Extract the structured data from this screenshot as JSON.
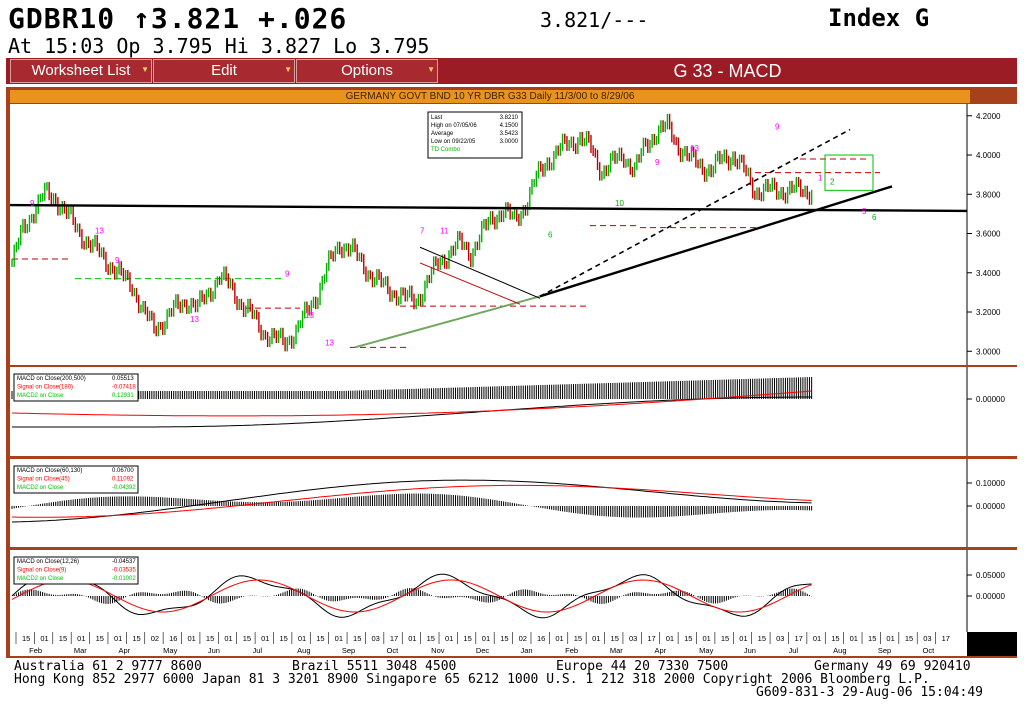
{
  "header": {
    "ticker": "GDBR10 ↑3.821 +.026",
    "quote": "3.821/---",
    "index": "Index  G",
    "line2": "At 15:03  Op 3.795 Hi 3.827 Lo 3.795"
  },
  "menu": {
    "worksheet": "Worksheet List",
    "edit": "Edit",
    "options": "Options",
    "title": "G 33 - MACD"
  },
  "chart_title": "GERMANY GOVT BND 10 YR DBR G33 Daily 11/3/00 to 8/29/06",
  "colors": {
    "frame": "#a8401c",
    "menu": "#9b1c24",
    "price_up": "#00c000",
    "price_down": "#c00000",
    "signal": "#ff0000",
    "macd_line": "#000000",
    "td_label": "#ff00ff"
  },
  "chart_data": [
    {
      "type": "line",
      "panel": "price",
      "y_ticks": [
        "4.2000",
        "4.0000",
        "3.8000",
        "3.6000",
        "3.4000",
        "3.2000",
        "3.0000"
      ],
      "ylim": [
        2.93,
        4.26
      ],
      "legend": [
        {
          "label": "Last",
          "value": "3.8210"
        },
        {
          "label": "High on  07/05/06",
          "value": "4.1500"
        },
        {
          "label": "Average",
          "value": "3.5423"
        },
        {
          "label": "Low on  09/22/05",
          "value": "3.0000"
        },
        {
          "label": "TD Combo",
          "value": ""
        }
      ],
      "x_index": [
        0,
        5,
        10,
        15,
        20,
        25,
        30,
        35,
        40,
        45,
        50,
        55,
        60,
        65,
        70,
        75,
        80,
        85,
        90,
        95,
        100,
        105,
        110,
        115,
        120,
        125,
        130,
        135,
        140,
        145,
        150,
        155,
        160,
        165,
        170,
        175,
        180,
        185,
        190,
        195,
        200,
        205,
        210,
        215,
        220,
        225,
        230,
        235,
        240,
        245,
        250,
        255,
        260,
        265,
        270,
        275,
        280,
        285,
        290,
        295,
        300,
        305,
        310,
        315,
        320,
        325,
        330,
        335,
        340,
        345,
        350,
        355,
        360,
        365,
        370,
        375,
        380,
        385,
        390,
        395
      ],
      "values": [
        3.45,
        3.62,
        3.72,
        3.8,
        3.78,
        3.7,
        3.62,
        3.55,
        3.5,
        3.44,
        3.38,
        3.34,
        3.2,
        3.12,
        3.16,
        3.22,
        3.26,
        3.22,
        3.3,
        3.38,
        3.33,
        3.24,
        3.18,
        3.1,
        3.06,
        3.05,
        3.1,
        3.2,
        3.3,
        3.44,
        3.55,
        3.52,
        3.45,
        3.38,
        3.33,
        3.3,
        3.27,
        3.26,
        3.35,
        3.45,
        3.5,
        3.55,
        3.5,
        3.6,
        3.68,
        3.72,
        3.66,
        3.75,
        3.88,
        3.97,
        4.02,
        4.06,
        4.09,
        4.03,
        3.92,
        3.96,
        4.0,
        3.92,
        4.05,
        4.12,
        4.14,
        4.05,
        3.98,
        3.95,
        3.92,
        3.98,
        4.0,
        3.92,
        3.82,
        3.82,
        3.82,
        3.82,
        3.82,
        3.82,
        3.82,
        3.82,
        3.82,
        3.82,
        3.82,
        3.82
      ],
      "last_index": 366
    },
    {
      "type": "bar",
      "panel": "macd_200_500",
      "legend": [
        {
          "label": "MACD on Close(200,500)",
          "value": "0.05513",
          "color": "#000000"
        },
        {
          "label": "Signal on Close(180)",
          "value": "-0.07418",
          "color": "#ff0000"
        },
        {
          "label": "MACD2 on Close",
          "value": "0.12931",
          "color": "#00c000"
        }
      ],
      "y_ticks": [
        "0.00000"
      ]
    },
    {
      "type": "bar",
      "panel": "macd_60_130",
      "legend": [
        {
          "label": "MACD on Close(60,130)",
          "value": "0.06700",
          "color": "#000000"
        },
        {
          "label": "Signal on Close(45)",
          "value": "0.11092",
          "color": "#ff0000"
        },
        {
          "label": "MACD2 on Close",
          "value": "-0.04392",
          "color": "#00c000"
        }
      ],
      "y_ticks": [
        "0.10000",
        "0.00000"
      ]
    },
    {
      "type": "bar",
      "panel": "macd_12_26",
      "legend": [
        {
          "label": "MACD on Close(12,26)",
          "value": "-0.04537",
          "color": "#000000"
        },
        {
          "label": "Signal on Close(9)",
          "value": "-0.03535",
          "color": "#ff0000"
        },
        {
          "label": "MACD2 on Close",
          "value": "-0.01002",
          "color": "#00c000"
        }
      ],
      "y_ticks": [
        "0.05000",
        "0.00000"
      ]
    }
  ],
  "x_axis": {
    "days": [
      "15",
      "01",
      "15",
      "01",
      "15",
      "01",
      "15",
      "02",
      "16",
      "01",
      "15",
      "01",
      "15",
      "01",
      "15",
      "01",
      "15",
      "01",
      "15",
      "03",
      "17",
      "01",
      "15",
      "01",
      "15",
      "01",
      "15",
      "02",
      "16",
      "01",
      "15",
      "01",
      "15",
      "03",
      "17",
      "01",
      "15",
      "01",
      "15",
      "01",
      "15",
      "03",
      "17",
      "01",
      "15",
      "01",
      "15",
      "01",
      "15",
      "03",
      "17"
    ],
    "months": [
      "Feb",
      "Mar",
      "Apr",
      "May",
      "Jun",
      "Jul",
      "Aug",
      "Sep",
      "Oct",
      "Nov",
      "Dec",
      "Jan",
      "Feb",
      "Mar",
      "Apr",
      "May",
      "Jun",
      "Jul",
      "Aug",
      "Sep",
      "Oct"
    ]
  },
  "footer": {
    "line1": [
      "Australia 61 2 9777 8600",
      "Brazil 5511 3048 4500",
      "Europe 44 20 7330 7500",
      "Germany 49 69 920410"
    ],
    "line2": "Hong Kong 852 2977 6000 Japan 81 3 3201 8900 Singapore 65 6212 1000 U.S. 1 212 318 2000 Copyright 2006 Bloomberg L.P.",
    "line3": "G609-831-3 29-Aug-06 15:04:49"
  }
}
